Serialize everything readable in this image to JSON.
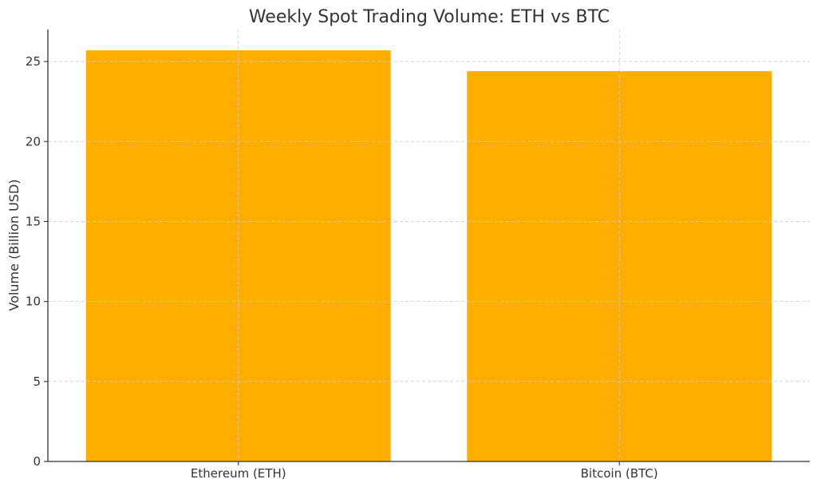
{
  "chart_data": {
    "type": "bar",
    "title": "Weekly Spot Trading Volume: ETH vs BTC",
    "xlabel": "",
    "ylabel": "Volume (Billion USD)",
    "categories": [
      "Ethereum (ETH)",
      "Bitcoin (BTC)"
    ],
    "values": [
      25.7,
      24.4
    ],
    "ylim": [
      0,
      27
    ],
    "yticks": [
      0,
      5,
      10,
      15,
      20,
      25
    ],
    "grid": true,
    "legend": "none",
    "bar_color": "#FFAE00"
  }
}
